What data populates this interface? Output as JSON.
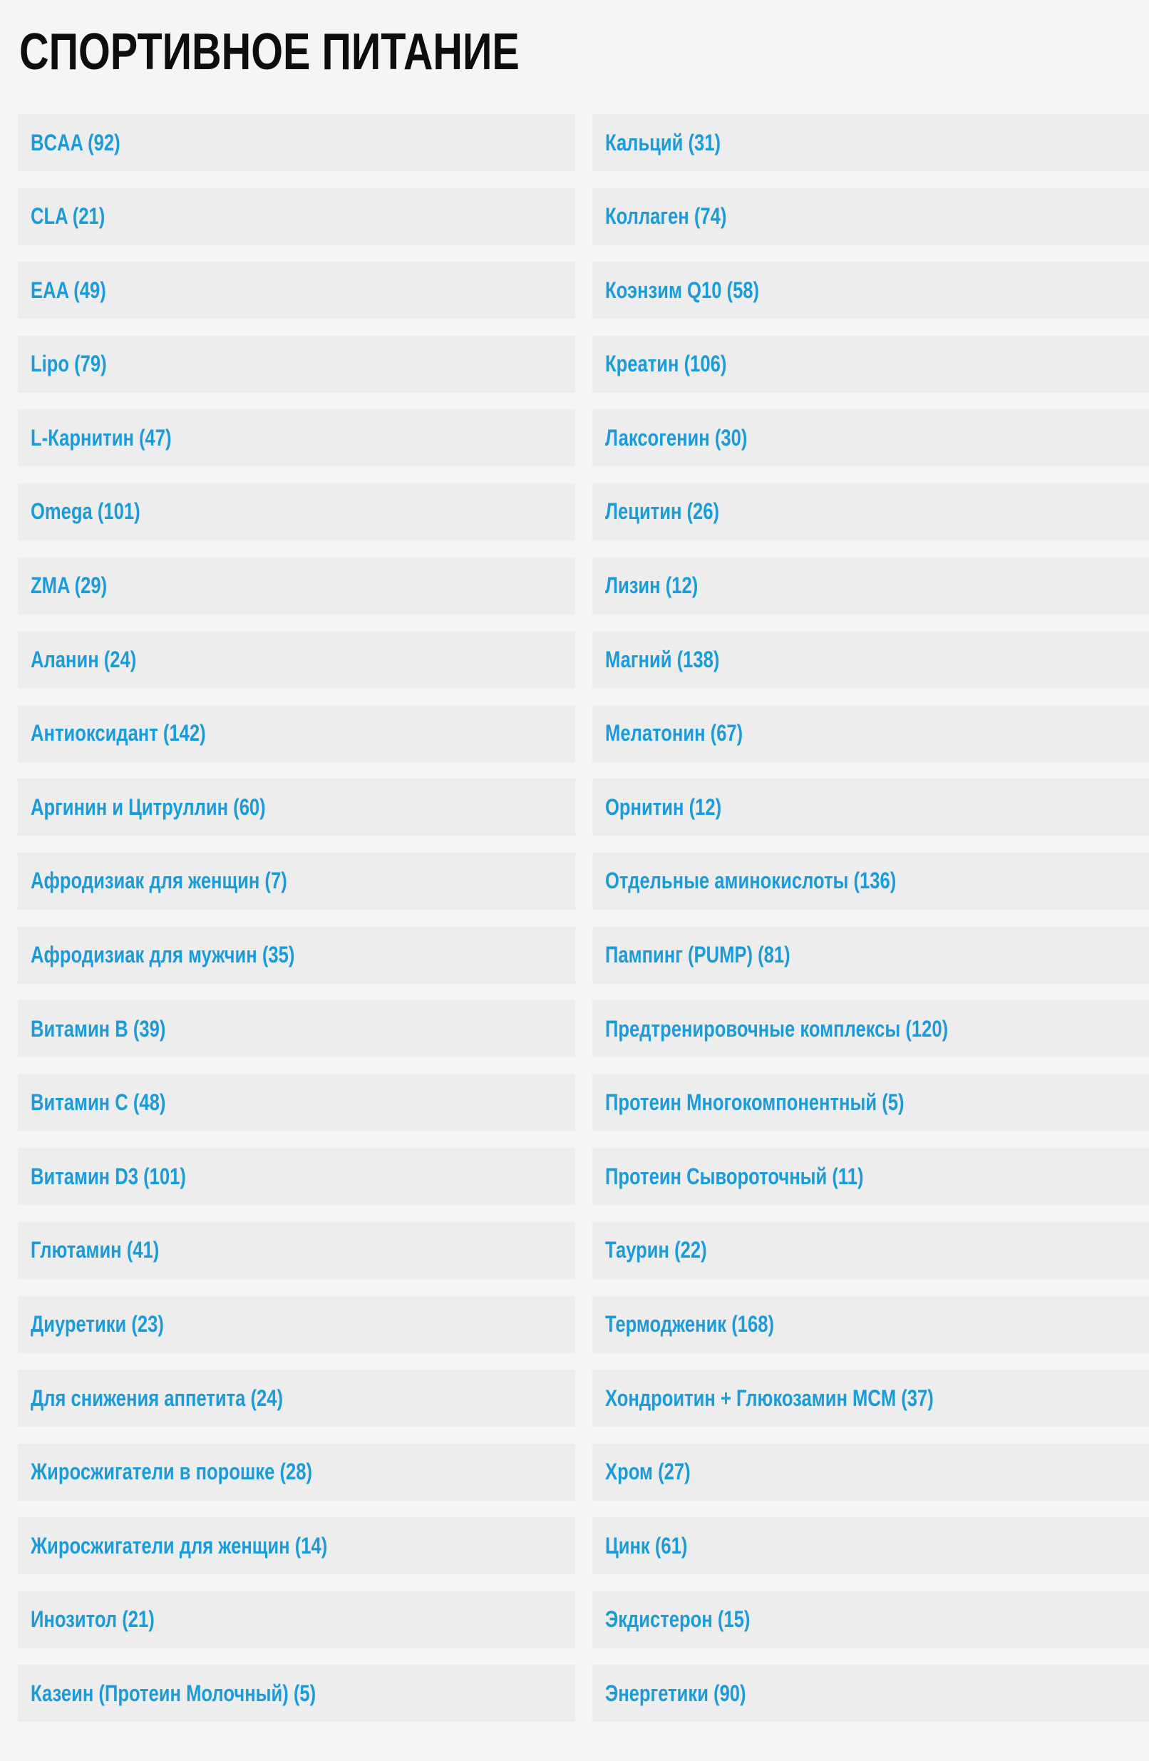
{
  "page": {
    "title": "СПОРТИВНОЕ ПИТАНИЕ"
  },
  "colors": {
    "page_bg": "#f5f5f6",
    "item_bg": "#ededee",
    "link_color": "#1b9bd8",
    "title_color": "#0d0d0d"
  },
  "categories": [
    {
      "label": "BCAA",
      "count": 92
    },
    {
      "label": "CLA",
      "count": 21
    },
    {
      "label": "EAA",
      "count": 49
    },
    {
      "label": "Lipo",
      "count": 79
    },
    {
      "label": "L-Карнитин",
      "count": 47
    },
    {
      "label": "Omega",
      "count": 101
    },
    {
      "label": "ZMA",
      "count": 29
    },
    {
      "label": "Аланин",
      "count": 24
    },
    {
      "label": "Антиоксидант",
      "count": 142
    },
    {
      "label": "Аргинин и Цитруллин",
      "count": 60
    },
    {
      "label": "Афродизиак для женщин",
      "count": 7
    },
    {
      "label": "Афродизиак для мужчин",
      "count": 35
    },
    {
      "label": "Витамин B",
      "count": 39
    },
    {
      "label": "Витамин C",
      "count": 48
    },
    {
      "label": "Витамин D3",
      "count": 101
    },
    {
      "label": "Глютамин",
      "count": 41
    },
    {
      "label": "Диуретики",
      "count": 23
    },
    {
      "label": "Для снижения аппетита",
      "count": 24
    },
    {
      "label": "Жиросжигатели в порошке",
      "count": 28
    },
    {
      "label": "Жиросжигатели для женщин",
      "count": 14
    },
    {
      "label": "Инозитол",
      "count": 21
    },
    {
      "label": "Казеин (Протеин Молочный)",
      "count": 5
    },
    {
      "label": "Кальций",
      "count": 31
    },
    {
      "label": "Коллаген",
      "count": 74
    },
    {
      "label": "Коэнзим Q10",
      "count": 58
    },
    {
      "label": "Креатин",
      "count": 106
    },
    {
      "label": "Лаксогенин",
      "count": 30
    },
    {
      "label": "Лецитин",
      "count": 26
    },
    {
      "label": "Лизин",
      "count": 12
    },
    {
      "label": "Магний",
      "count": 138
    },
    {
      "label": "Мелатонин",
      "count": 67
    },
    {
      "label": "Орнитин",
      "count": 12
    },
    {
      "label": "Отдельные аминокислоты",
      "count": 136
    },
    {
      "label": "Пампинг (PUMP)",
      "count": 81
    },
    {
      "label": "Предтренировочные комплексы",
      "count": 120
    },
    {
      "label": "Протеин Многокомпонентный",
      "count": 5
    },
    {
      "label": "Протеин Сывороточный",
      "count": 11
    },
    {
      "label": "Таурин",
      "count": 22
    },
    {
      "label": "Термодженик",
      "count": 168
    },
    {
      "label": "Хондроитин + Глюкозамин MCM",
      "count": 37
    },
    {
      "label": "Хром",
      "count": 27
    },
    {
      "label": "Цинк",
      "count": 61
    },
    {
      "label": "Экдистерон",
      "count": 15
    },
    {
      "label": "Энергетики",
      "count": 90
    }
  ]
}
